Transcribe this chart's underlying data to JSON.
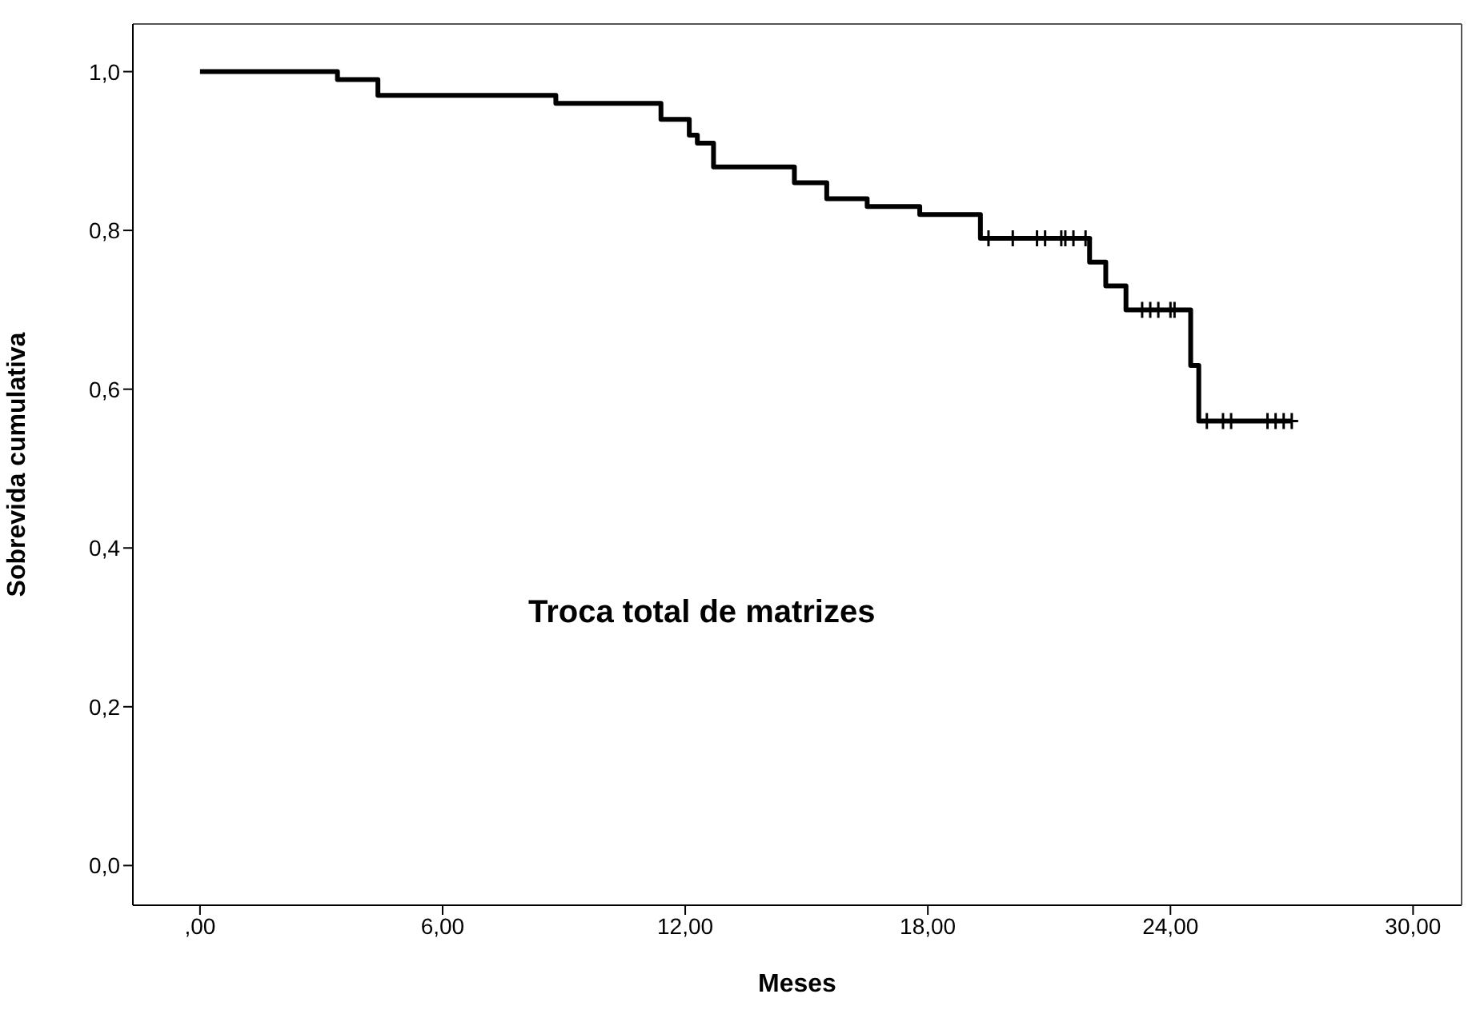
{
  "chart_data": {
    "type": "step",
    "xlabel": "Meses",
    "ylabel": "Sobrevida cumulativa",
    "annotations": [
      "Troca total de matrizes"
    ],
    "xlim": [
      -1.66,
      31.2
    ],
    "ylim": [
      -0.05,
      1.06
    ],
    "xticks": [
      {
        "value": 0,
        "label": ",00"
      },
      {
        "value": 6,
        "label": "6,00"
      },
      {
        "value": 12,
        "label": "12,00"
      },
      {
        "value": 18,
        "label": "18,00"
      },
      {
        "value": 24,
        "label": "24,00"
      },
      {
        "value": 30,
        "label": "30,00"
      }
    ],
    "yticks": [
      {
        "value": 0,
        "label": "0,0"
      },
      {
        "value": 0.2,
        "label": "0,2"
      },
      {
        "value": 0.4,
        "label": "0,4"
      },
      {
        "value": 0.6,
        "label": "0,6"
      },
      {
        "value": 0.8,
        "label": "0,8"
      },
      {
        "value": 1,
        "label": "1,0"
      }
    ],
    "series": [
      {
        "type": "step",
        "color": "#000000",
        "marker": "none",
        "x": [
          0,
          3.4,
          4.4,
          8.8,
          11.4,
          12.1,
          12.3,
          12.7,
          14.7,
          15.5,
          16.5,
          17.8,
          19.3,
          22.0,
          22.4,
          22.9,
          24.5,
          24.7,
          27.0
        ],
        "values": [
          1,
          0.99,
          0.97,
          0.96,
          0.94,
          0.92,
          0.91,
          0.88,
          0.86,
          0.84,
          0.83,
          0.82,
          0.79,
          0.76,
          0.73,
          0.7,
          0.63,
          0.56,
          0.56
        ]
      },
      {
        "type": "scatter",
        "color": "#000000",
        "marker": "cross",
        "x": [
          19.5,
          20.1,
          20.7,
          20.9,
          21.3,
          21.4,
          21.6,
          21.9,
          23.3,
          23.5,
          23.7,
          24.0,
          24.1,
          24.9,
          25.3,
          25.5,
          26.4,
          26.6,
          26.8,
          27.0
        ],
        "values": [
          0.79,
          0.79,
          0.79,
          0.79,
          0.79,
          0.79,
          0.79,
          0.79,
          0.7,
          0.7,
          0.7,
          0.7,
          0.7,
          0.56,
          0.56,
          0.56,
          0.56,
          0.56,
          0.56,
          0.56
        ]
      }
    ]
  }
}
